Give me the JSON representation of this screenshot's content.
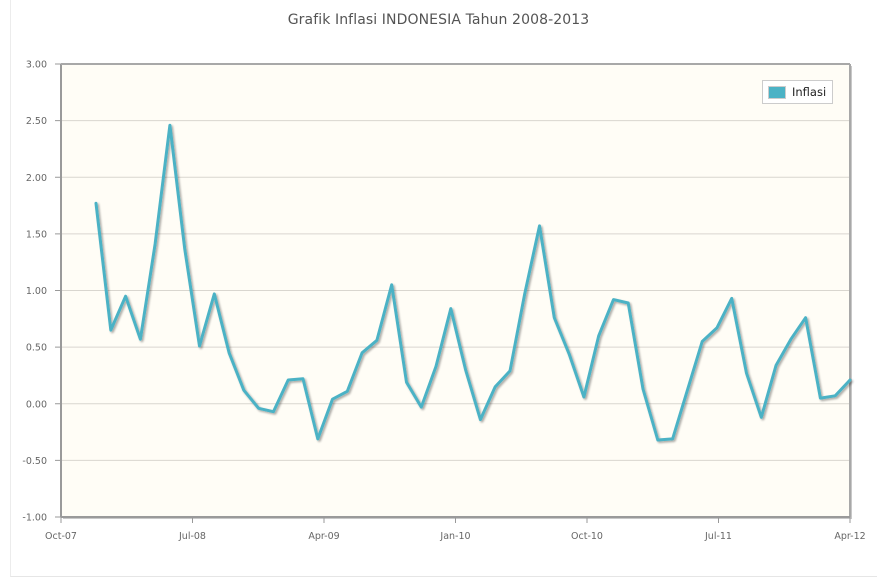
{
  "chart_data": {
    "type": "line",
    "title": "Grafik Inflasi INDONESIA Tahun 2008-2013",
    "xlabel": "",
    "ylabel": "",
    "ylim": [
      -1.0,
      3.0
    ],
    "yticks": [
      "3.00",
      "2.50",
      "2.00",
      "1.50",
      "1.00",
      "0.50",
      "0.00",
      "-0.50",
      "-1.00"
    ],
    "xticks": [
      "Oct-07",
      "Jul-08",
      "Apr-09",
      "Jan-10",
      "Oct-10",
      "Jul-11",
      "Apr-12"
    ],
    "grid": true,
    "legend_position": "top-right",
    "x": [
      "Jan-08",
      "Feb-08",
      "Mar-08",
      "Apr-08",
      "May-08",
      "Jun-08",
      "Jul-08",
      "Aug-08",
      "Sep-08",
      "Oct-08",
      "Nov-08",
      "Dec-08",
      "Jan-09",
      "Feb-09",
      "Mar-09",
      "Apr-09",
      "May-09",
      "Jun-09",
      "Jul-09",
      "Aug-09",
      "Sep-09",
      "Oct-09",
      "Nov-09",
      "Dec-09",
      "Jan-10",
      "Feb-10",
      "Mar-10",
      "Apr-10",
      "May-10",
      "Jun-10",
      "Jul-10",
      "Aug-10",
      "Sep-10",
      "Oct-10",
      "Nov-10",
      "Dec-10",
      "Jan-11",
      "Feb-11",
      "Mar-11",
      "Apr-11",
      "May-11",
      "Jun-11",
      "Jul-11",
      "Aug-11",
      "Sep-11",
      "Oct-11",
      "Nov-11",
      "Dec-11",
      "Jan-12",
      "Feb-12",
      "Mar-12",
      "Apr-12"
    ],
    "series": [
      {
        "name": "Inflasi",
        "color": "#4bb2c5",
        "values": [
          1.77,
          0.65,
          0.95,
          0.57,
          1.41,
          2.46,
          1.37,
          0.51,
          0.97,
          0.45,
          0.12,
          -0.04,
          -0.07,
          0.21,
          0.22,
          -0.31,
          0.04,
          0.11,
          0.45,
          0.56,
          1.05,
          0.19,
          -0.03,
          0.33,
          0.84,
          0.3,
          -0.14,
          0.15,
          0.29,
          0.97,
          1.57,
          0.76,
          0.44,
          0.06,
          0.6,
          0.92,
          0.89,
          0.13,
          -0.32,
          -0.31,
          0.12,
          0.55,
          0.67,
          0.93,
          0.27,
          -0.12,
          0.34,
          0.57,
          0.76,
          0.05,
          0.07,
          0.21
        ]
      }
    ]
  },
  "legend": {
    "label": "Inflasi",
    "color": "#4bb2c5"
  },
  "colors": {
    "plot_background": "#fffdf6",
    "grid": "#d9d6cf",
    "axis": "#999999"
  }
}
